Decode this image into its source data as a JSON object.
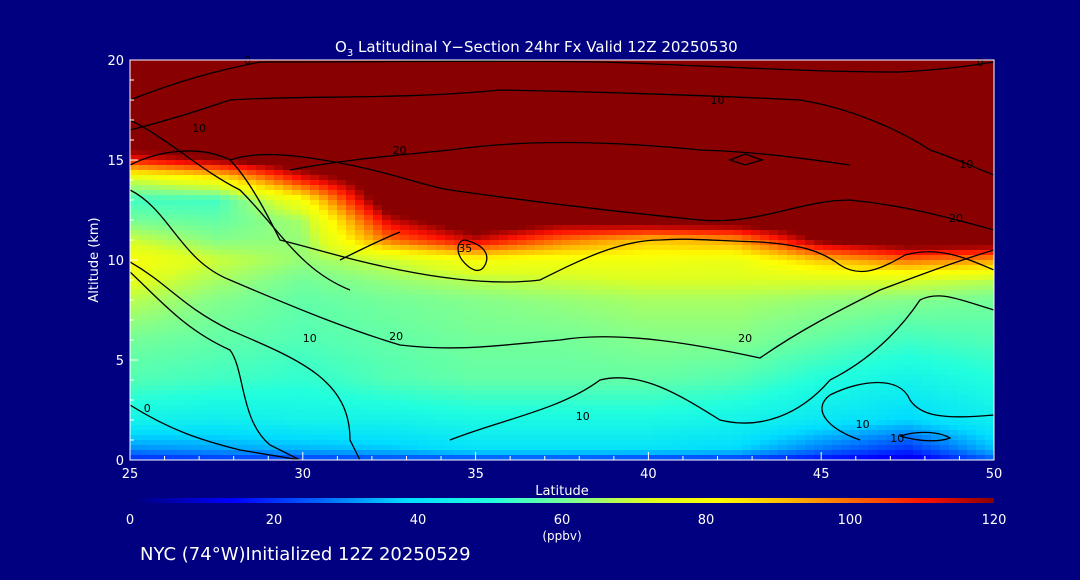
{
  "chart_data": {
    "type": "heatmap",
    "title_main": "O",
    "title_sub": "3",
    "title_rest": " Latitudinal Y−Section 24hr  Fx Valid 12Z 20250530",
    "xlabel": "Latitude",
    "ylabel": "Altitude (km)",
    "xlim": [
      25,
      50
    ],
    "ylim": [
      0,
      20
    ],
    "x_ticks": [
      "25",
      "30",
      "35",
      "40",
      "45",
      "50"
    ],
    "y_ticks": [
      "0",
      "5",
      "10",
      "15",
      "20"
    ],
    "colorbar": {
      "range": [
        0,
        120
      ],
      "ticks": [
        "0",
        "20",
        "40",
        "60",
        "80",
        "100",
        "120"
      ],
      "label": "(ppbv)"
    },
    "field_lat": [
      25,
      27.5,
      30,
      32.5,
      35,
      37.5,
      40,
      42.5,
      45,
      47.5,
      50
    ],
    "field_alt": [
      0,
      0.5,
      2,
      4,
      6,
      8,
      9,
      10,
      11,
      12,
      13,
      14,
      15,
      16,
      20
    ],
    "field_values": [
      [
        18,
        20,
        21,
        22,
        22,
        22,
        20,
        20,
        15,
        10,
        25
      ],
      [
        30,
        32,
        34,
        36,
        40,
        40,
        40,
        38,
        28,
        20,
        35
      ],
      [
        46,
        44,
        46,
        46,
        48,
        48,
        48,
        46,
        42,
        38,
        44
      ],
      [
        56,
        54,
        52,
        56,
        58,
        58,
        58,
        56,
        50,
        46,
        50
      ],
      [
        60,
        58,
        56,
        58,
        60,
        60,
        62,
        62,
        58,
        54,
        56
      ],
      [
        68,
        62,
        58,
        60,
        62,
        64,
        66,
        66,
        64,
        62,
        60
      ],
      [
        74,
        66,
        60,
        64,
        68,
        70,
        72,
        72,
        72,
        72,
        68
      ],
      [
        80,
        70,
        64,
        70,
        80,
        78,
        78,
        76,
        90,
        100,
        95
      ],
      [
        70,
        62,
        64,
        100,
        115,
        100,
        90,
        95,
        122,
        130,
        130
      ],
      [
        60,
        58,
        66,
        115,
        130,
        125,
        130,
        130,
        130,
        130,
        130
      ],
      [
        54,
        54,
        80,
        130,
        130,
        130,
        130,
        130,
        130,
        130,
        130
      ],
      [
        70,
        80,
        110,
        130,
        130,
        130,
        130,
        130,
        130,
        130,
        130
      ],
      [
        110,
        120,
        130,
        130,
        130,
        130,
        130,
        130,
        130,
        130,
        130
      ],
      [
        130,
        130,
        130,
        130,
        130,
        130,
        130,
        130,
        130,
        130,
        130
      ],
      [
        130,
        130,
        130,
        130,
        130,
        130,
        130,
        130,
        130,
        130,
        130
      ]
    ],
    "contour_labels": [
      {
        "text": "0",
        "x": 25.5,
        "y": 2.4
      },
      {
        "text": "10",
        "x": 30.2,
        "y": 5.9
      },
      {
        "text": "20",
        "x": 32.7,
        "y": 6.0
      },
      {
        "text": "35",
        "x": 34.7,
        "y": 10.4
      },
      {
        "text": "10",
        "x": 38.1,
        "y": 2.0
      },
      {
        "text": "20",
        "x": 42.8,
        "y": 5.9
      },
      {
        "text": "10",
        "x": 46.2,
        "y": 1.6
      },
      {
        "text": "10",
        "x": 47.2,
        "y": 0.9
      },
      {
        "text": "20",
        "x": 32.8,
        "y": 15.3
      },
      {
        "text": "10",
        "x": 27.0,
        "y": 16.4
      },
      {
        "text": "10",
        "x": 42.0,
        "y": 17.8
      },
      {
        "text": "10",
        "x": 49.2,
        "y": 14.6
      },
      {
        "text": "20",
        "x": 48.9,
        "y": 11.9
      },
      {
        "text": "0",
        "x": 28.4,
        "y": 19.8
      },
      {
        "text": "0",
        "x": 49.6,
        "y": 19.7
      }
    ],
    "footer_text": "NYC (74°W)Initialized 12Z 20250529"
  }
}
